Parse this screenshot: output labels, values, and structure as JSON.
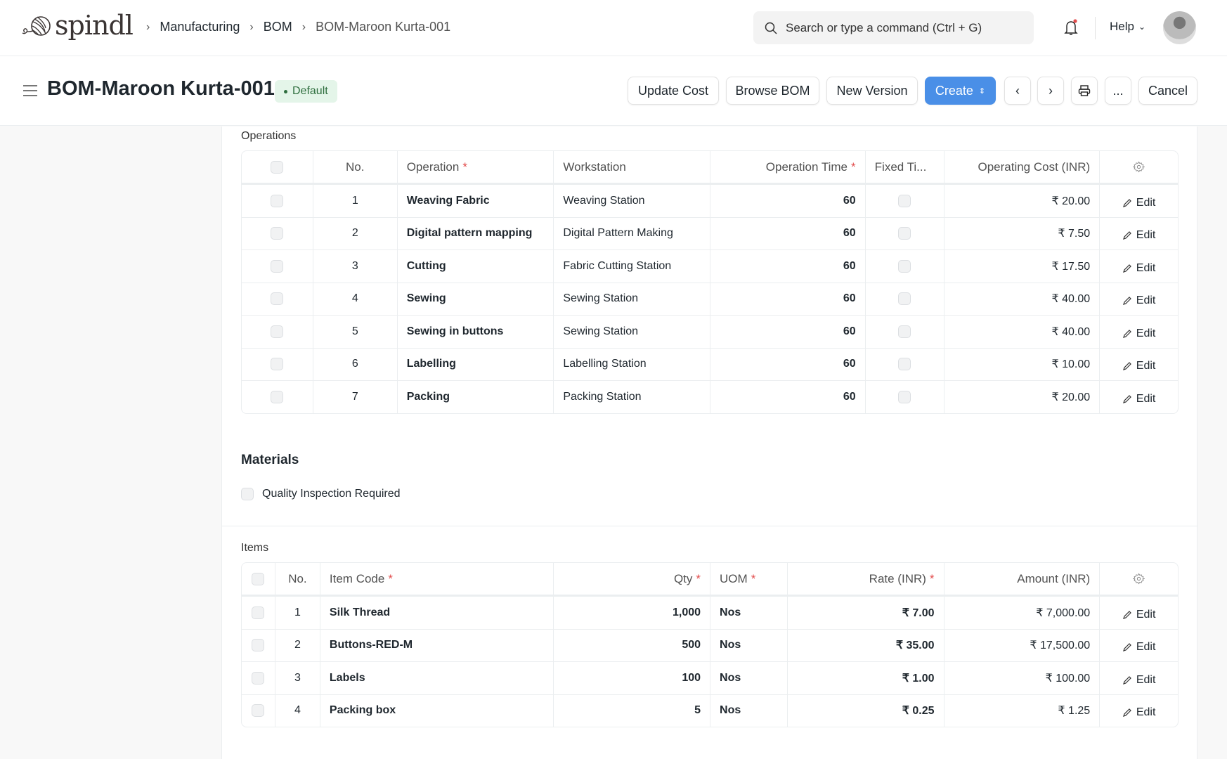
{
  "nav": {
    "logo": "spindl",
    "breadcrumbs": [
      "Manufacturing",
      "BOM",
      "BOM-Maroon Kurta-001"
    ],
    "search_placeholder": "Search or type a command (Ctrl + G)",
    "help": "Help"
  },
  "header": {
    "title": "BOM-Maroon Kurta-001",
    "status": "Default",
    "status_color": "#2e6e3e",
    "buttons": {
      "update_cost": "Update Cost",
      "browse_bom": "Browse BOM",
      "new_version": "New Version",
      "create": "Create",
      "more": "...",
      "cancel": "Cancel"
    },
    "accent": "#4a8fe7"
  },
  "operations": {
    "label": "Operations",
    "columns": [
      "No.",
      "Operation",
      "Workstation",
      "Operation Time",
      "Fixed Ti...",
      "Operating Cost (INR)"
    ],
    "rows": [
      {
        "no": "1",
        "operation": "Weaving Fabric",
        "workstation": "Weaving Station",
        "time": "60",
        "cost": "₹ 20.00"
      },
      {
        "no": "2",
        "operation": "Digital pattern mapping",
        "workstation": "Digital Pattern Making",
        "time": "60",
        "cost": "₹ 7.50"
      },
      {
        "no": "3",
        "operation": "Cutting",
        "workstation": "Fabric Cutting Station",
        "time": "60",
        "cost": "₹ 17.50"
      },
      {
        "no": "4",
        "operation": "Sewing",
        "workstation": "Sewing Station",
        "time": "60",
        "cost": "₹ 40.00"
      },
      {
        "no": "5",
        "operation": "Sewing in buttons",
        "workstation": "Sewing Station",
        "time": "60",
        "cost": "₹ 40.00"
      },
      {
        "no": "6",
        "operation": "Labelling",
        "workstation": "Labelling Station",
        "time": "60",
        "cost": "₹ 10.00"
      },
      {
        "no": "7",
        "operation": "Packing",
        "workstation": "Packing Station",
        "time": "60",
        "cost": "₹ 20.00"
      }
    ]
  },
  "edit_label": "Edit",
  "materials": {
    "heading": "Materials",
    "quality_inspection": "Quality Inspection Required"
  },
  "items": {
    "label": "Items",
    "columns": [
      "No.",
      "Item Code",
      "Qty",
      "UOM",
      "Rate (INR)",
      "Amount (INR)"
    ],
    "rows": [
      {
        "no": "1",
        "code": "Silk Thread",
        "qty": "1,000",
        "uom": "Nos",
        "rate": "₹ 7.00",
        "amount": "₹ 7,000.00"
      },
      {
        "no": "2",
        "code": "Buttons-RED-M",
        "qty": "500",
        "uom": "Nos",
        "rate": "₹ 35.00",
        "amount": "₹ 17,500.00"
      },
      {
        "no": "3",
        "code": "Labels",
        "qty": "100",
        "uom": "Nos",
        "rate": "₹ 1.00",
        "amount": "₹ 100.00"
      },
      {
        "no": "4",
        "code": "Packing box",
        "qty": "5",
        "uom": "Nos",
        "rate": "₹ 0.25",
        "amount": "₹ 1.25"
      }
    ]
  }
}
